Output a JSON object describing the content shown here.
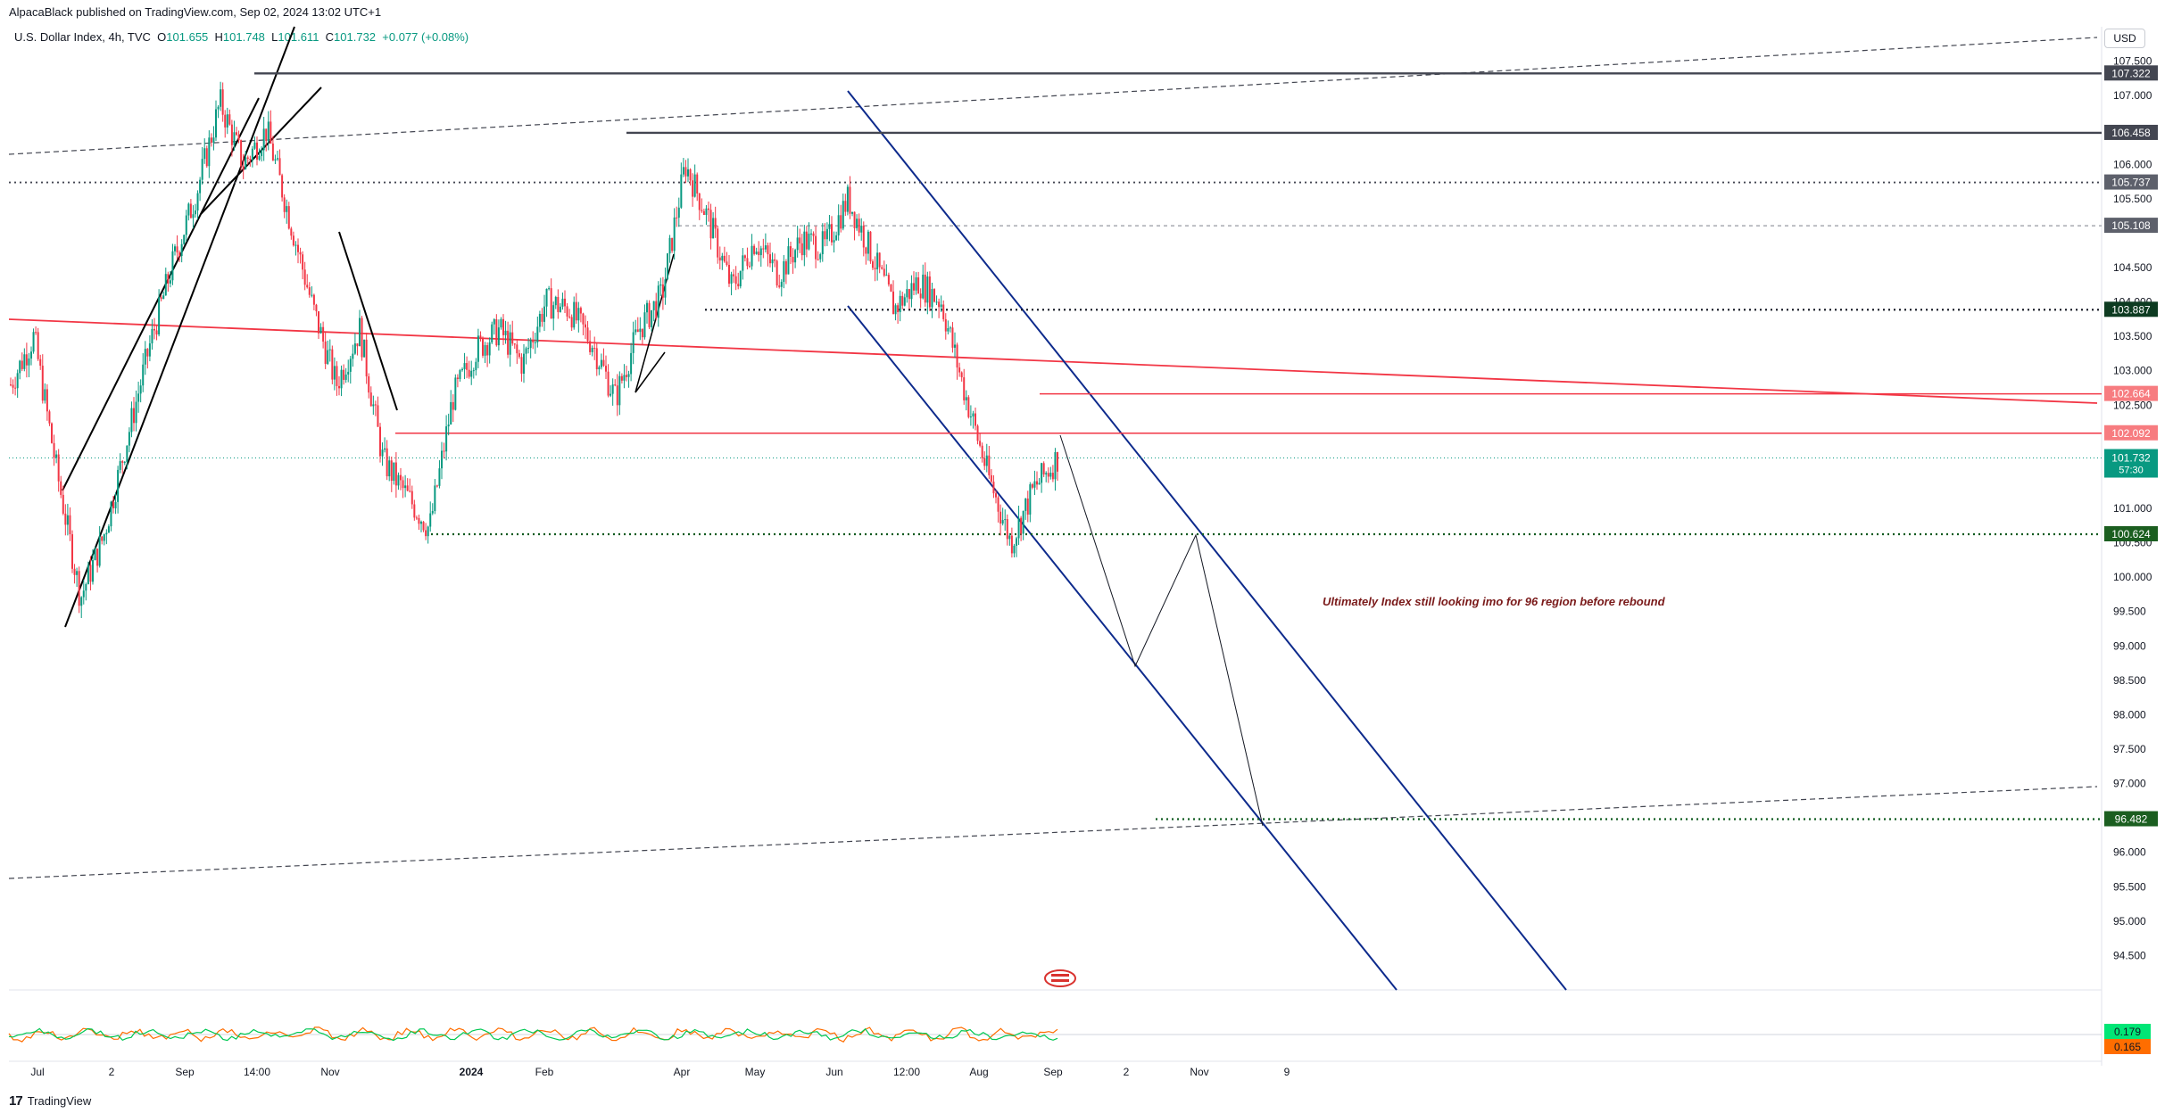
{
  "header": {
    "published": "AlpacaBlack published on TradingView.com, Sep 02, 2024 13:02 UTC+1"
  },
  "legend": {
    "symbol": "U.S. Dollar Index, 4h, TVC",
    "open_label": "O",
    "open": "101.655",
    "high_label": "H",
    "high": "101.748",
    "low_label": "L",
    "low": "101.611",
    "close_label": "C",
    "close": "101.732",
    "change": "+0.077 (+0.08%)"
  },
  "currency_button": "USD",
  "annotation": "Ultimately Index still looking imo for 96 region before rebound",
  "footer": {
    "logo": "17",
    "brand": "TradingView"
  },
  "colors": {
    "up": "#089981",
    "down": "#f23645",
    "channel": "#0d2a8c",
    "red_line": "#f23645",
    "dark_line": "#434651",
    "green_dots": "#0e5a1f",
    "annotation": "#7a1a1a"
  },
  "chart_data": {
    "type": "line",
    "title": "",
    "xlabel": "",
    "ylabel": "",
    "ylim": [
      94.0,
      108.0
    ],
    "x_ticks": [
      "Jul",
      "2",
      "Sep",
      "14:00",
      "Nov",
      "2024",
      "Feb",
      "Apr",
      "May",
      "Jun",
      "12:00",
      "Aug",
      "Sep",
      "2",
      "Nov",
      "9"
    ],
    "y_ticks": [
      "107.500",
      "107.000",
      "106.000",
      "105.500",
      "104.500",
      "104.000",
      "103.500",
      "103.000",
      "102.500",
      "101.000",
      "100.500",
      "100.000",
      "99.500",
      "99.000",
      "98.500",
      "98.000",
      "97.500",
      "97.000",
      "96.000",
      "95.500",
      "95.000",
      "94.500"
    ],
    "price_levels": [
      {
        "label": "107.322",
        "value": 107.322,
        "style": "solid-dark"
      },
      {
        "label": "106.458",
        "value": 106.458,
        "style": "solid-dark"
      },
      {
        "label": "105.737",
        "value": 105.737,
        "style": "dotted-dark"
      },
      {
        "label": "105.108",
        "value": 105.108,
        "style": "dashed-gray"
      },
      {
        "label": "103.887",
        "value": 103.887,
        "style": "dotted-black"
      },
      {
        "label": "102.664",
        "value": 102.664,
        "style": "solid-red"
      },
      {
        "label": "102.092",
        "value": 102.092,
        "style": "solid-red"
      },
      {
        "label": "100.624",
        "value": 100.624,
        "style": "dotted-green"
      },
      {
        "label": "96.482",
        "value": 96.482,
        "style": "dotted-green"
      }
    ],
    "last_price": {
      "label": "101.732",
      "value": 101.732,
      "countdown": "57:30"
    },
    "series": [
      {
        "values": [
          102.8,
          103.5,
          101.5,
          99.7,
          100.6,
          102.0,
          103.4,
          104.6,
          105.6,
          106.9,
          106.0,
          106.5,
          105.2,
          103.9,
          102.8,
          103.6,
          101.7,
          101.2,
          100.7,
          102.6,
          103.3,
          103.6,
          103.1,
          104.0,
          103.9,
          103.4,
          102.6,
          103.6,
          104.1,
          106.0,
          105.2,
          104.2,
          104.9,
          104.4,
          104.9,
          104.8,
          105.5,
          104.7,
          103.9,
          104.3,
          104.0,
          102.7,
          101.5,
          100.5,
          101.3,
          101.73
        ]
      }
    ],
    "oscillator": {
      "values": [
        "0.179",
        "0.165"
      ]
    }
  }
}
